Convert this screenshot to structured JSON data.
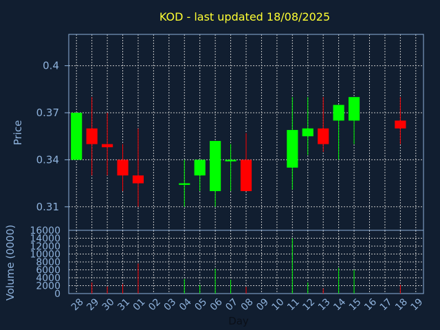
{
  "chart_data": [
    {
      "type": "candlestick",
      "title": "KOD - last updated 18/08/2025",
      "ylabel": "Price",
      "ylim": [
        0.295,
        0.42
      ],
      "y_ticks": [
        "0.31",
        "0.34",
        "0.37",
        "0.4"
      ],
      "y_tick_values": [
        0.31,
        0.34,
        0.37,
        0.4
      ],
      "grid": true,
      "colors": {
        "up": "#00ff00",
        "down": "#ff0000",
        "grid": "#c8c8c8",
        "background": "#111e30",
        "title": "#ffff33",
        "text": "#8fb3dd"
      },
      "candles": [
        {
          "day": "28",
          "open": 0.34,
          "high": 0.37,
          "low": 0.34,
          "close": 0.37
        },
        {
          "day": "29",
          "open": 0.36,
          "high": 0.38,
          "low": 0.33,
          "close": 0.35
        },
        {
          "day": "30",
          "open": 0.35,
          "high": 0.37,
          "low": 0.33,
          "close": 0.348
        },
        {
          "day": "31",
          "open": 0.34,
          "high": 0.35,
          "low": 0.32,
          "close": 0.33
        },
        {
          "day": "01",
          "open": 0.33,
          "high": 0.36,
          "low": 0.31,
          "close": 0.325
        },
        {
          "day": "04",
          "open": 0.324,
          "high": 0.34,
          "low": 0.31,
          "close": 0.325
        },
        {
          "day": "05",
          "open": 0.33,
          "high": 0.34,
          "low": 0.32,
          "close": 0.34
        },
        {
          "day": "06",
          "open": 0.32,
          "high": 0.352,
          "low": 0.31,
          "close": 0.352
        },
        {
          "day": "07",
          "open": 0.339,
          "high": 0.35,
          "low": 0.32,
          "close": 0.34
        },
        {
          "day": "08",
          "open": 0.34,
          "high": 0.357,
          "low": 0.32,
          "close": 0.32
        },
        {
          "day": "11",
          "open": 0.335,
          "high": 0.38,
          "low": 0.321,
          "close": 0.359
        },
        {
          "day": "12",
          "open": 0.355,
          "high": 0.38,
          "low": 0.343,
          "close": 0.36
        },
        {
          "day": "13",
          "open": 0.36,
          "high": 0.38,
          "low": 0.345,
          "close": 0.35
        },
        {
          "day": "14",
          "open": 0.365,
          "high": 0.375,
          "low": 0.34,
          "close": 0.375
        },
        {
          "day": "15",
          "open": 0.365,
          "high": 0.38,
          "low": 0.35,
          "close": 0.38
        },
        {
          "day": "18",
          "open": 0.365,
          "high": 0.38,
          "low": 0.35,
          "close": 0.36
        }
      ]
    },
    {
      "type": "bar",
      "ylabel": "Volume (0000)",
      "xlabel": "Day",
      "ylim": [
        0,
        16000
      ],
      "y_ticks": [
        "0",
        "2000",
        "4000",
        "6000",
        "8000",
        "10000",
        "12000",
        "14000",
        "16000"
      ],
      "y_tick_values": [
        0,
        2000,
        4000,
        6000,
        8000,
        10000,
        12000,
        14000,
        16000
      ],
      "categories": [
        "28",
        "29",
        "30",
        "31",
        "01",
        "02",
        "03",
        "04",
        "05",
        "06",
        "07",
        "08",
        "09",
        "10",
        "11",
        "12",
        "13",
        "14",
        "15",
        "16",
        "17",
        "18",
        "19"
      ],
      "bars": [
        {
          "day": "28",
          "value": 0,
          "direction": "up"
        },
        {
          "day": "29",
          "value": 2800,
          "direction": "down"
        },
        {
          "day": "30",
          "value": 1800,
          "direction": "down"
        },
        {
          "day": "31",
          "value": 2400,
          "direction": "down"
        },
        {
          "day": "01",
          "value": 7600,
          "direction": "down"
        },
        {
          "day": "04",
          "value": 3700,
          "direction": "up"
        },
        {
          "day": "05",
          "value": 2200,
          "direction": "up"
        },
        {
          "day": "06",
          "value": 6300,
          "direction": "up"
        },
        {
          "day": "07",
          "value": 3500,
          "direction": "up"
        },
        {
          "day": "08",
          "value": 1700,
          "direction": "down"
        },
        {
          "day": "11",
          "value": 14000,
          "direction": "up"
        },
        {
          "day": "12",
          "value": 2800,
          "direction": "up"
        },
        {
          "day": "13",
          "value": 1300,
          "direction": "down"
        },
        {
          "day": "14",
          "value": 6500,
          "direction": "up"
        },
        {
          "day": "15",
          "value": 6000,
          "direction": "up"
        },
        {
          "day": "18",
          "value": 2200,
          "direction": "down"
        }
      ]
    }
  ]
}
